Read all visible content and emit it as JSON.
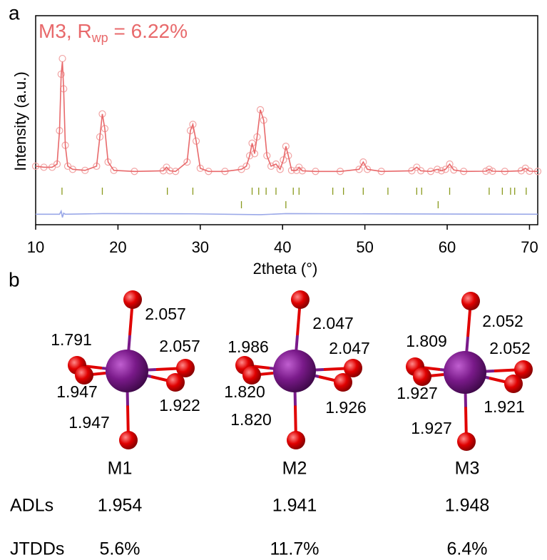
{
  "chart_data": {
    "type": "line",
    "panel": "a",
    "annotation": [
      "M3, R",
      "wp",
      " = 6.22%"
    ],
    "x_label": "2theta (°)",
    "y_label": "Intensity (a.u.)",
    "xlim": [
      10,
      71
    ],
    "ylim": [
      0,
      100
    ],
    "xticks": [
      10,
      20,
      30,
      40,
      50,
      60,
      70
    ],
    "x": [
      10,
      11,
      12,
      12.6,
      12.9,
      13.1,
      13.25,
      13.4,
      13.6,
      13.9,
      14.5,
      16,
      17.4,
      17.8,
      18.1,
      18.4,
      18.8,
      19.5,
      22,
      25.5,
      25.9,
      26.3,
      27,
      28.4,
      28.8,
      29.1,
      29.5,
      30,
      31,
      33,
      35,
      35.6,
      36,
      36.3,
      36.6,
      36.9,
      37.3,
      37.7,
      38.1,
      38.6,
      39.2,
      39.7,
      40.1,
      40.4,
      40.7,
      41.1,
      41.7,
      42,
      42.4,
      44,
      47,
      49.3,
      49.8,
      50.3,
      52,
      55.7,
      56.3,
      56.8,
      58,
      58.8,
      59.3,
      59.8,
      60.3,
      60.8,
      62,
      64.7,
      65.1,
      65.5,
      67,
      69,
      69.5,
      70,
      71
    ],
    "series": [
      {
        "style": "circles",
        "color": "#f2a4a4",
        "values": [
          28,
          27.5,
          27.5,
          29,
          45,
          72,
          79.5,
          65,
          38,
          28,
          26.5,
          26,
          28,
          42,
          53,
          46,
          30,
          26,
          25.5,
          25.8,
          27.5,
          25.8,
          25.5,
          30,
          45,
          48,
          40,
          27,
          25.5,
          25.5,
          26.5,
          28,
          33,
          39,
          34,
          42,
          55,
          50,
          33,
          28,
          29,
          26.5,
          31,
          37.5,
          33,
          26,
          26,
          27.5,
          25.8,
          25.5,
          25.5,
          26.5,
          30,
          26.5,
          25.5,
          25.8,
          27.5,
          25.8,
          25.5,
          26.5,
          25.8,
          26.5,
          29,
          26.2,
          25.5,
          25.6,
          26.5,
          25.6,
          25.5,
          25.8,
          27,
          25.6,
          25.5
        ]
      },
      {
        "style": "line",
        "color": "#e8696b",
        "values": [
          28,
          27.5,
          27.5,
          29,
          45,
          72,
          78,
          65,
          38,
          28,
          26.5,
          26,
          28,
          42,
          53,
          46,
          30,
          26,
          25.5,
          25.8,
          27.5,
          25.8,
          25.5,
          30,
          45,
          48,
          40,
          27,
          25.5,
          25.5,
          26.5,
          28,
          33,
          39,
          34,
          42,
          55,
          50,
          33,
          28,
          29,
          26.5,
          31,
          37.5,
          33,
          26,
          26,
          27.5,
          25.8,
          25.5,
          25.5,
          26.5,
          30,
          26.5,
          25.5,
          25.8,
          27.5,
          25.8,
          25.5,
          26.5,
          25.8,
          26.5,
          29,
          26.2,
          25.5,
          25.6,
          26.5,
          25.6,
          25.5,
          25.8,
          27,
          25.6,
          25.5
        ]
      },
      {
        "style": "line",
        "color": "#9aa8e8",
        "x": [
          10,
          12.9,
          13.1,
          13.25,
          13.4,
          13.6,
          18.1,
          29.1,
          37.3,
          40.4,
          71
        ],
        "values": [
          5,
          5,
          6.5,
          3.5,
          5.5,
          5,
          5.3,
          5.2,
          4.8,
          5.3,
          5
        ]
      }
    ],
    "reflections": [
      {
        "color": "#8a9a1e",
        "positions": [
          13.2,
          18.1,
          26.0,
          29.1,
          36.3,
          37.1,
          38.0,
          39.2,
          41.3,
          42.0,
          46.1,
          47.4,
          49.8,
          52.8,
          56.3,
          56.9,
          60.3,
          65.1,
          66.7,
          67.7,
          68.2,
          69.6
        ]
      },
      {
        "color": "#8a9a1e",
        "positions": [
          35.0,
          40.4,
          58.9
        ]
      }
    ]
  },
  "panel_b": {
    "panel": "b",
    "structures": [
      {
        "name": "M1",
        "bonds": [
          "2.057",
          "1.791",
          "2.057",
          "1.947",
          "1.922",
          "1.947"
        ]
      },
      {
        "name": "M2",
        "bonds": [
          "2.047",
          "1.986",
          "2.047",
          "1.820",
          "1.926",
          "1.820"
        ]
      },
      {
        "name": "M3",
        "bonds": [
          "2.052",
          "1.809",
          "2.052",
          "1.927",
          "1.921",
          "1.927"
        ]
      }
    ],
    "rows": [
      {
        "label": "ADLs",
        "values": [
          "1.954",
          "1.941",
          "1.948"
        ]
      },
      {
        "label": "JTDDs",
        "values": [
          "5.6%",
          "11.7%",
          "6.4%"
        ]
      }
    ]
  }
}
